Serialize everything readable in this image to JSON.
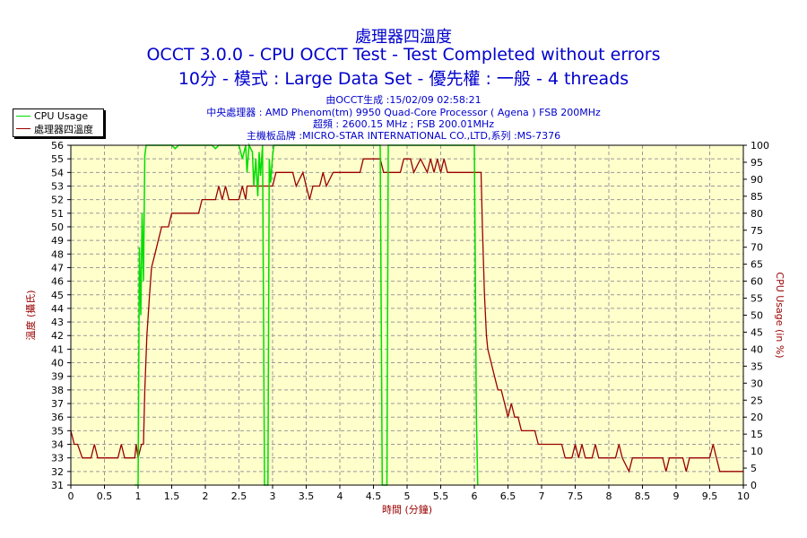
{
  "header": {
    "title": "處理器四溫度",
    "subtitle": "OCCT 3.0.0 - CPU OCCT Test - Test Completed without errors",
    "subtitle2": "10分 - 模式 : Large Data Set - 優先權 : 一般 - 4 threads"
  },
  "info": {
    "line1": "由OCCT生成 :15/02/09 02:58:21",
    "line2": "中央處理器 : AMD Phenom(tm) 9950 Quad-Core Processor ( Agena ) FSB 200MHz",
    "line3": "超頻 : 2600.15 MHz ; FSB 200.01MHz",
    "line4": "主機板品牌 :MICRO-STAR INTERNATIONAL CO.,LTD,系列 :MS-7376"
  },
  "legend": {
    "cpu_usage": "CPU Usage",
    "temp": "處理器四溫度"
  },
  "colors": {
    "temp_line": "#990000",
    "cpu_line": "#00dd00",
    "title_text": "#0000cc",
    "axis_label": "#990000",
    "plot_bg": "#ffffcc",
    "grid": "#999999"
  },
  "chart_data": {
    "type": "line",
    "xlabel": "時間 (分鐘)",
    "ylabel_left": "溫度 (攝氏)",
    "ylabel_right": "CPU Usage (in %)",
    "xlim": [
      0,
      10
    ],
    "ylim_left": [
      31,
      56
    ],
    "ylim_right": [
      0,
      100
    ],
    "x_ticks": [
      "0",
      "0.5",
      "1",
      "1.5",
      "2",
      "2.5",
      "3",
      "3.5",
      "4",
      "4.5",
      "5",
      "5.5",
      "6",
      "6.5",
      "7",
      "7.5",
      "8",
      "8.5",
      "9",
      "9.5",
      "10"
    ],
    "y_ticks_left": [
      "31",
      "32",
      "33",
      "34",
      "35",
      "36",
      "37",
      "38",
      "39",
      "40",
      "41",
      "42",
      "43",
      "44",
      "45",
      "46",
      "47",
      "48",
      "49",
      "50",
      "51",
      "52",
      "53",
      "54",
      "55",
      "56"
    ],
    "y_ticks_right": [
      "0",
      "5",
      "10",
      "15",
      "20",
      "25",
      "30",
      "35",
      "40",
      "45",
      "50",
      "55",
      "60",
      "65",
      "70",
      "75",
      "80",
      "85",
      "90",
      "95",
      "100"
    ],
    "grid": true,
    "legend_position": "top-left",
    "series": [
      {
        "name": "處理器四溫度",
        "axis": "left",
        "points": [
          [
            0,
            35
          ],
          [
            0.05,
            34
          ],
          [
            0.1,
            34
          ],
          [
            0.17,
            33
          ],
          [
            0.3,
            33
          ],
          [
            0.35,
            34
          ],
          [
            0.4,
            33
          ],
          [
            0.7,
            33
          ],
          [
            0.75,
            34
          ],
          [
            0.8,
            33
          ],
          [
            0.95,
            33
          ],
          [
            0.97,
            34
          ],
          [
            1.0,
            33
          ],
          [
            1.05,
            34
          ],
          [
            1.08,
            34
          ],
          [
            1.1,
            38
          ],
          [
            1.13,
            42
          ],
          [
            1.17,
            45
          ],
          [
            1.2,
            47
          ],
          [
            1.25,
            48
          ],
          [
            1.3,
            49
          ],
          [
            1.35,
            50
          ],
          [
            1.45,
            50
          ],
          [
            1.5,
            51
          ],
          [
            1.9,
            51
          ],
          [
            1.95,
            52
          ],
          [
            2.15,
            52
          ],
          [
            2.2,
            53
          ],
          [
            2.25,
            52
          ],
          [
            2.3,
            53
          ],
          [
            2.35,
            52
          ],
          [
            2.5,
            52
          ],
          [
            2.55,
            53
          ],
          [
            2.6,
            52
          ],
          [
            2.62,
            53
          ],
          [
            3.0,
            53
          ],
          [
            3.05,
            54
          ],
          [
            3.15,
            54
          ],
          [
            3.3,
            54
          ],
          [
            3.35,
            53
          ],
          [
            3.45,
            54
          ],
          [
            3.5,
            53
          ],
          [
            3.55,
            52
          ],
          [
            3.6,
            53
          ],
          [
            3.7,
            53
          ],
          [
            3.75,
            54
          ],
          [
            3.8,
            53
          ],
          [
            3.9,
            54
          ],
          [
            4.3,
            54
          ],
          [
            4.35,
            55
          ],
          [
            4.6,
            55
          ],
          [
            4.65,
            54
          ],
          [
            4.9,
            54
          ],
          [
            4.95,
            55
          ],
          [
            5.05,
            55
          ],
          [
            5.1,
            54
          ],
          [
            5.2,
            55
          ],
          [
            5.3,
            54
          ],
          [
            5.35,
            55
          ],
          [
            5.4,
            54
          ],
          [
            5.45,
            55
          ],
          [
            5.5,
            54
          ],
          [
            5.55,
            55
          ],
          [
            5.6,
            54
          ],
          [
            6.1,
            54
          ],
          [
            6.12,
            50
          ],
          [
            6.15,
            45
          ],
          [
            6.18,
            42
          ],
          [
            6.2,
            41
          ],
          [
            6.25,
            40
          ],
          [
            6.3,
            39
          ],
          [
            6.35,
            38
          ],
          [
            6.4,
            38
          ],
          [
            6.45,
            37
          ],
          [
            6.5,
            36
          ],
          [
            6.55,
            37
          ],
          [
            6.6,
            36
          ],
          [
            6.65,
            36
          ],
          [
            6.7,
            35
          ],
          [
            6.9,
            35
          ],
          [
            6.95,
            34
          ],
          [
            7.3,
            34
          ],
          [
            7.35,
            33
          ],
          [
            7.45,
            33
          ],
          [
            7.5,
            34
          ],
          [
            7.55,
            33
          ],
          [
            7.6,
            34
          ],
          [
            7.65,
            33
          ],
          [
            7.75,
            33
          ],
          [
            7.8,
            34
          ],
          [
            7.85,
            33
          ],
          [
            8.1,
            33
          ],
          [
            8.15,
            34
          ],
          [
            8.2,
            33
          ],
          [
            8.3,
            32
          ],
          [
            8.35,
            33
          ],
          [
            8.8,
            33
          ],
          [
            8.85,
            32
          ],
          [
            8.9,
            33
          ],
          [
            9.1,
            33
          ],
          [
            9.15,
            32
          ],
          [
            9.2,
            33
          ],
          [
            9.5,
            33
          ],
          [
            9.55,
            34
          ],
          [
            9.6,
            33
          ],
          [
            9.65,
            32
          ],
          [
            9.7,
            32
          ],
          [
            10.0,
            32
          ]
        ]
      },
      {
        "name": "CPU Usage",
        "axis": "right",
        "points": [
          [
            0.95,
            0
          ],
          [
            1.0,
            0
          ],
          [
            1.02,
            70
          ],
          [
            1.04,
            50
          ],
          [
            1.06,
            80
          ],
          [
            1.08,
            60
          ],
          [
            1.1,
            97
          ],
          [
            1.12,
            100
          ],
          [
            1.5,
            100
          ],
          [
            1.55,
            99
          ],
          [
            1.6,
            100
          ],
          [
            2.1,
            100
          ],
          [
            2.15,
            99
          ],
          [
            2.2,
            100
          ],
          [
            2.5,
            100
          ],
          [
            2.55,
            96
          ],
          [
            2.6,
            100
          ],
          [
            2.62,
            92
          ],
          [
            2.65,
            100
          ],
          [
            2.7,
            98
          ],
          [
            2.72,
            88
          ],
          [
            2.75,
            96
          ],
          [
            2.78,
            85
          ],
          [
            2.8,
            98
          ],
          [
            2.82,
            91
          ],
          [
            2.85,
            100
          ],
          [
            2.88,
            0
          ],
          [
            2.93,
            0
          ],
          [
            2.95,
            96
          ],
          [
            2.97,
            89
          ],
          [
            3.0,
            97
          ],
          [
            3.02,
            100
          ],
          [
            3.5,
            100
          ],
          [
            4.6,
            100
          ],
          [
            4.63,
            0
          ],
          [
            4.7,
            0
          ],
          [
            4.72,
            100
          ],
          [
            6.0,
            100
          ],
          [
            6.03,
            20
          ],
          [
            6.05,
            0
          ]
        ]
      }
    ]
  }
}
